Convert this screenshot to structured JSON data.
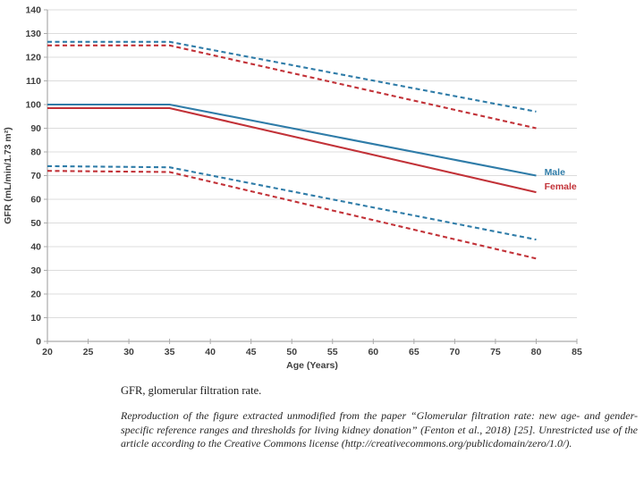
{
  "chart_data": {
    "type": "line",
    "title": "",
    "xlabel": "Age (Years)",
    "ylabel": "GFR (mL/min/1.73 m²)",
    "xlim": [
      20,
      85
    ],
    "ylim": [
      0,
      140
    ],
    "x_ticks": [
      20,
      25,
      30,
      35,
      40,
      45,
      50,
      55,
      60,
      65,
      70,
      75,
      80,
      85
    ],
    "y_ticks": [
      0,
      10,
      20,
      30,
      40,
      50,
      60,
      70,
      80,
      90,
      100,
      110,
      120,
      130,
      140
    ],
    "grid": "horizontal-only",
    "legend_position": "end-of-line-labels",
    "colors": {
      "male": "#2F7CA8",
      "female": "#C23238",
      "gridline": "#dcdcdc",
      "axis": "#ababab"
    },
    "series": [
      {
        "name": "male-upper-reference-limit",
        "sex": "male",
        "style": "dashed",
        "x": [
          20,
          35,
          80
        ],
        "values": [
          126.5,
          126.5,
          97
        ]
      },
      {
        "name": "female-upper-reference-limit",
        "sex": "female",
        "style": "dashed",
        "x": [
          20,
          35,
          80
        ],
        "values": [
          125,
          125,
          90
        ]
      },
      {
        "name": "male-median",
        "sex": "male",
        "style": "solid",
        "x": [
          20,
          35,
          80
        ],
        "values": [
          100,
          100,
          70
        ]
      },
      {
        "name": "female-median",
        "sex": "female",
        "style": "solid",
        "x": [
          20,
          35,
          80
        ],
        "values": [
          98.5,
          98.5,
          63
        ]
      },
      {
        "name": "male-lower-reference-limit",
        "sex": "male",
        "style": "dashed",
        "x": [
          20,
          35,
          80
        ],
        "values": [
          74,
          73.5,
          43
        ]
      },
      {
        "name": "female-lower-reference-limit",
        "sex": "female",
        "style": "dashed",
        "x": [
          20,
          35,
          80
        ],
        "values": [
          72,
          71.5,
          35
        ]
      }
    ],
    "end_labels": [
      {
        "text": "Male",
        "sex": "male",
        "x": 81,
        "value": 71.5
      },
      {
        "text": "Female",
        "sex": "female",
        "x": 81,
        "value": 65.5
      }
    ]
  },
  "caption": {
    "abbreviation_note": "GFR, glomerular filtration rate.",
    "license_note": "Reproduction of the figure extracted unmodified from the paper “Glomerular filtration rate: new age- and gender-specific reference ranges and thresholds for living kidney donation” (Fenton et al., 2018) [25]. Unrestricted use of the article according to the Creative Commons license (http://creativecommons.org/publicdomain/zero/1.0/)."
  }
}
